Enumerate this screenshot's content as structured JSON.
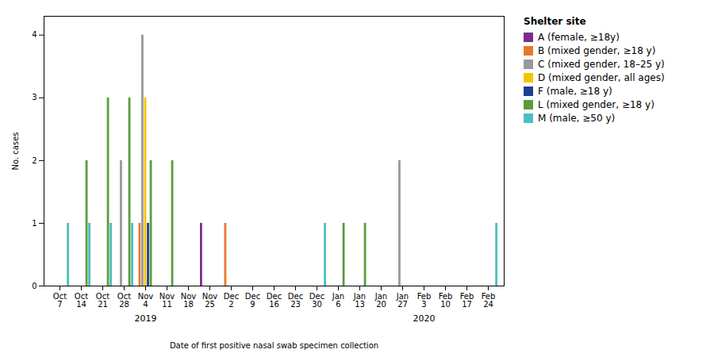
{
  "chart_data": {
    "type": "bar",
    "xlabel": "Date of first positive nasal swab specimen collection",
    "ylabel": "No. cases",
    "legend_title": "Shelter site",
    "categories": [
      "Oct\n7",
      "Oct\n14",
      "Oct\n21",
      "Oct\n28",
      "Nov\n4",
      "Nov\n11",
      "Nov\n18",
      "Nov\n25",
      "Dec\n2",
      "Dec\n9",
      "Dec\n16",
      "Dec\n23",
      "Dec\n30",
      "Jan\n6",
      "Jan\n13",
      "Jan\n20",
      "Jan\n27",
      "Feb\n3",
      "Feb\n10",
      "Feb\n17",
      "Feb\n24"
    ],
    "series": [
      {
        "name": "A (female, ≥18y)",
        "color": "#7B2D8B",
        "values": [
          0,
          0,
          0,
          0,
          0,
          0,
          0,
          1,
          0,
          0,
          0,
          0,
          0,
          0,
          0,
          0,
          0,
          0,
          0,
          0,
          0
        ]
      },
      {
        "name": "B (mixed gender, ≥18 y)",
        "color": "#E8792A",
        "values": [
          0,
          0,
          0,
          0,
          1,
          0,
          0,
          0,
          1,
          0,
          0,
          0,
          0,
          0,
          0,
          0,
          0,
          0,
          0,
          0,
          0
        ]
      },
      {
        "name": "C (mixed gender, 18–25 y)",
        "color": "#999999",
        "values": [
          0,
          0,
          0,
          2,
          4,
          0,
          0,
          0,
          0,
          0,
          0,
          0,
          0,
          0,
          0,
          0,
          2,
          0,
          0,
          0,
          0
        ]
      },
      {
        "name": "D (mixed gender, all ages)",
        "color": "#F5C400",
        "values": [
          0,
          0,
          0,
          0,
          3,
          0,
          0,
          0,
          0,
          0,
          0,
          0,
          0,
          0,
          0,
          0,
          0,
          0,
          0,
          0,
          0
        ]
      },
      {
        "name": "F (male, ≥18 y)",
        "color": "#1F3F8F",
        "values": [
          0,
          0,
          0,
          0,
          1,
          0,
          0,
          0,
          0,
          0,
          0,
          0,
          0,
          0,
          0,
          0,
          0,
          0,
          0,
          0,
          0
        ]
      },
      {
        "name": "L (mixed gender, ≥18 y)",
        "color": "#5A9C3A",
        "values": [
          0,
          2,
          3,
          3,
          2,
          2,
          0,
          0,
          0,
          0,
          0,
          0,
          0,
          1,
          1,
          0,
          0,
          0,
          0,
          0,
          0
        ]
      },
      {
        "name": "M (male, ≥50 y)",
        "color": "#4BBFBF",
        "values": [
          1,
          1,
          1,
          1,
          0,
          0,
          0,
          0,
          0,
          0,
          0,
          0,
          1,
          0,
          0,
          0,
          0,
          0,
          0,
          0,
          1
        ]
      }
    ],
    "annotations": [
      {
        "text": "2019",
        "x": "Nov\n4"
      },
      {
        "text": "2020",
        "x": "Feb\n3"
      }
    ],
    "ylim": [
      0,
      4.3
    ],
    "yticks": [
      0,
      1,
      2,
      3,
      4
    ],
    "grid": false,
    "legend": "upper right"
  }
}
